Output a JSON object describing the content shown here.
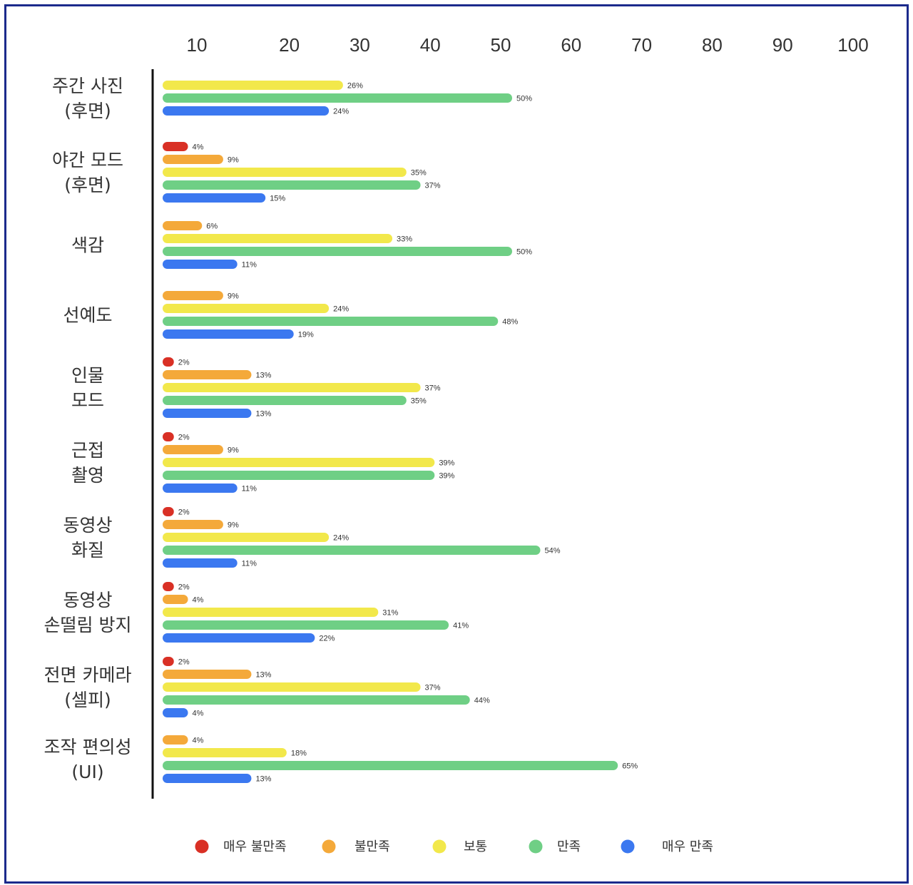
{
  "chart_data": {
    "type": "bar",
    "orientation": "horizontal",
    "title": "",
    "xlabel": "",
    "ylabel": "",
    "xlim": [
      0,
      100
    ],
    "x_ticks": [
      10,
      20,
      30,
      40,
      50,
      60,
      70,
      80,
      90,
      100
    ],
    "grid": false,
    "legend_position": "bottom",
    "value_suffix": "%",
    "categories": [
      [
        "주간 사진",
        "(후면)"
      ],
      [
        "야간 모드",
        "(후면)"
      ],
      [
        "색감"
      ],
      [
        "선예도"
      ],
      [
        "인물",
        "모드"
      ],
      [
        "근접",
        "촬영"
      ],
      [
        "동영상",
        "화질"
      ],
      [
        "동영상",
        "손떨림 방지"
      ],
      [
        "전면 카메라",
        "(셀피)"
      ],
      [
        "조작 편의성",
        "(UI)"
      ]
    ],
    "series": [
      {
        "name": "매우 불만족",
        "color": "#d93025",
        "values": [
          null,
          4,
          null,
          null,
          2,
          2,
          2,
          2,
          2,
          null
        ]
      },
      {
        "name": "불만족",
        "color": "#f4a93a",
        "values": [
          null,
          9,
          6,
          9,
          13,
          9,
          9,
          4,
          13,
          4
        ]
      },
      {
        "name": "보통",
        "color": "#f2e84b",
        "values": [
          26,
          35,
          33,
          24,
          37,
          39,
          24,
          31,
          37,
          18
        ]
      },
      {
        "name": "만족",
        "color": "#6fcf85",
        "values": [
          50,
          37,
          50,
          48,
          35,
          39,
          54,
          41,
          44,
          65
        ]
      },
      {
        "name": "매우 만족",
        "color": "#3b78f0",
        "values": [
          24,
          15,
          11,
          19,
          13,
          11,
          11,
          22,
          4,
          13
        ]
      }
    ]
  }
}
